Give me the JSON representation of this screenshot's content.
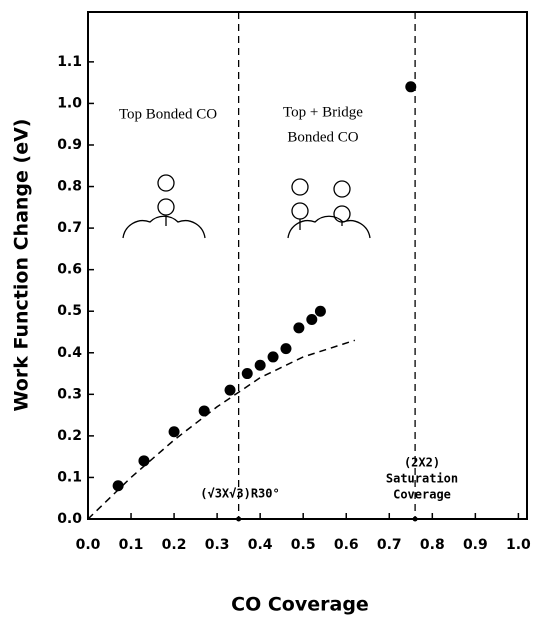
{
  "chart_data": {
    "type": "scatter",
    "x_label": "CO Coverage",
    "y_label": "Work Function Change (eV)",
    "xlim": [
      0,
      1.02
    ],
    "ylim": [
      0,
      1.22
    ],
    "xticks": [
      {
        "value": 0,
        "label": "0.0"
      },
      0.1,
      0.2,
      0.3,
      0.4,
      0.5,
      0.6,
      0.7,
      0.8,
      0.9,
      {
        "value": 1,
        "label": "1.0"
      }
    ],
    "yticks": [
      {
        "value": 0,
        "label": "0.0"
      },
      0.1,
      0.2,
      0.3,
      0.4,
      0.5,
      0.6,
      0.7,
      0.8,
      0.9,
      {
        "value": 1,
        "label": "1.0"
      },
      1.1
    ],
    "series": [
      {
        "color": "#000000",
        "style": "points",
        "x": [
          0.07,
          0.13,
          0.2,
          0.27,
          0.33,
          0.37,
          0.4,
          0.43,
          0.46,
          0.49,
          0.52,
          0.54,
          0.75
        ],
        "values": [
          0.08,
          0.14,
          0.21,
          0.26,
          0.31,
          0.35,
          0.37,
          0.39,
          0.41,
          0.46,
          0.48,
          0.5,
          1.04
        ]
      },
      {
        "color": "#000000",
        "style": "dashed",
        "x": [
          0,
          0.1,
          0.2,
          0.3,
          0.4,
          0.5,
          0.62
        ],
        "values": [
          0,
          0.1,
          0.19,
          0.27,
          0.34,
          0.39,
          0.43
        ]
      }
    ],
    "vlines": [
      0.35,
      0.76
    ],
    "annotations": [
      "Top Bonded CO",
      "Top + Bridge",
      "Bonded CO",
      "(√3X√3)R30°",
      "(2X2)",
      "Saturation",
      "Coverage"
    ]
  }
}
